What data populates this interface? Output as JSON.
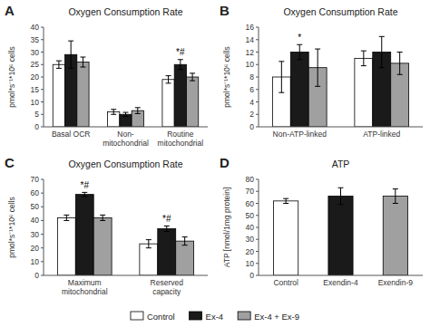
{
  "chart_data": [
    {
      "type": "bar",
      "title": "Oxygen Consumption Rate",
      "panel_label": "A",
      "categories": [
        "Basal OCR",
        "Non-\nmitochondrial",
        "Routine\nmitochondrial"
      ],
      "series": [
        {
          "name": "Control",
          "color": "#ffffff",
          "values": [
            25,
            6,
            19
          ],
          "errors": [
            1.5,
            1.0,
            1.5
          ]
        },
        {
          "name": "Ex-4",
          "color": "#1a1a1a",
          "values": [
            29,
            5,
            25
          ],
          "errors": [
            5.5,
            0.8,
            2.0
          ]
        },
        {
          "name": "Ex-4 + Ex-9",
          "color": "#a0a0a0",
          "values": [
            26,
            6.5,
            20
          ],
          "errors": [
            2.0,
            1.2,
            1.5
          ]
        }
      ],
      "annotations": [
        null,
        null,
        "*#"
      ],
      "ylabel": "pmol*s⁻¹*10⁶ cells",
      "ylim": [
        0,
        40
      ],
      "yticks": [
        0,
        5,
        10,
        15,
        20,
        25,
        30,
        35,
        40
      ],
      "grid": false
    },
    {
      "type": "bar",
      "title": "Oxygen Consumption Rate",
      "panel_label": "B",
      "categories": [
        "Non-ATP-linked",
        "ATP-linked"
      ],
      "series": [
        {
          "name": "Control",
          "color": "#ffffff",
          "values": [
            8,
            11
          ],
          "errors": [
            2.5,
            1.2
          ]
        },
        {
          "name": "Ex-4",
          "color": "#1a1a1a",
          "values": [
            12,
            12
          ],
          "errors": [
            1.2,
            2.5
          ]
        },
        {
          "name": "Ex-4 + Ex-9",
          "color": "#a0a0a0",
          "values": [
            9.5,
            10.2
          ],
          "errors": [
            3.0,
            1.8
          ]
        }
      ],
      "annotations": [
        "*",
        null
      ],
      "ylabel": "pmol*s⁻¹*10⁶ cells",
      "ylim": [
        0,
        16
      ],
      "yticks": [
        0,
        2,
        4,
        6,
        8,
        10,
        12,
        14,
        16
      ],
      "grid": false
    },
    {
      "type": "bar",
      "title": "Oxygen Consumption Rate",
      "panel_label": "C",
      "categories": [
        "Maximum\nmitochondrial",
        "Reserved\ncapacity"
      ],
      "series": [
        {
          "name": "Control",
          "color": "#ffffff",
          "values": [
            42,
            23
          ],
          "errors": [
            2,
            3
          ]
        },
        {
          "name": "Ex-4",
          "color": "#1a1a1a",
          "values": [
            59,
            34
          ],
          "errors": [
            1.5,
            2
          ]
        },
        {
          "name": "Ex-4 + Ex-9",
          "color": "#a0a0a0",
          "values": [
            42,
            25
          ],
          "errors": [
            2,
            3
          ]
        }
      ],
      "annotations": [
        "*#",
        "*#"
      ],
      "ylabel": "pmol*s⁻¹*10⁶ cells",
      "ylim": [
        0,
        70
      ],
      "yticks": [
        0,
        10,
        20,
        30,
        40,
        50,
        60,
        70
      ],
      "grid": false,
      "legend": "bottom"
    },
    {
      "type": "bar",
      "title": "ATP",
      "panel_label": "D",
      "categories": [
        "Control",
        "Exendin-4",
        "Exendin-9"
      ],
      "values": [
        62,
        66,
        66
      ],
      "errors": [
        2,
        7,
        6
      ],
      "colors": [
        "#ffffff",
        "#1a1a1a",
        "#a0a0a0"
      ],
      "ylabel": "ATP [nmol/1mg protein]",
      "ylim": [
        0,
        80
      ],
      "yticks": [
        0,
        10,
        20,
        30,
        40,
        50,
        60,
        70,
        80
      ],
      "grid": false
    }
  ]
}
